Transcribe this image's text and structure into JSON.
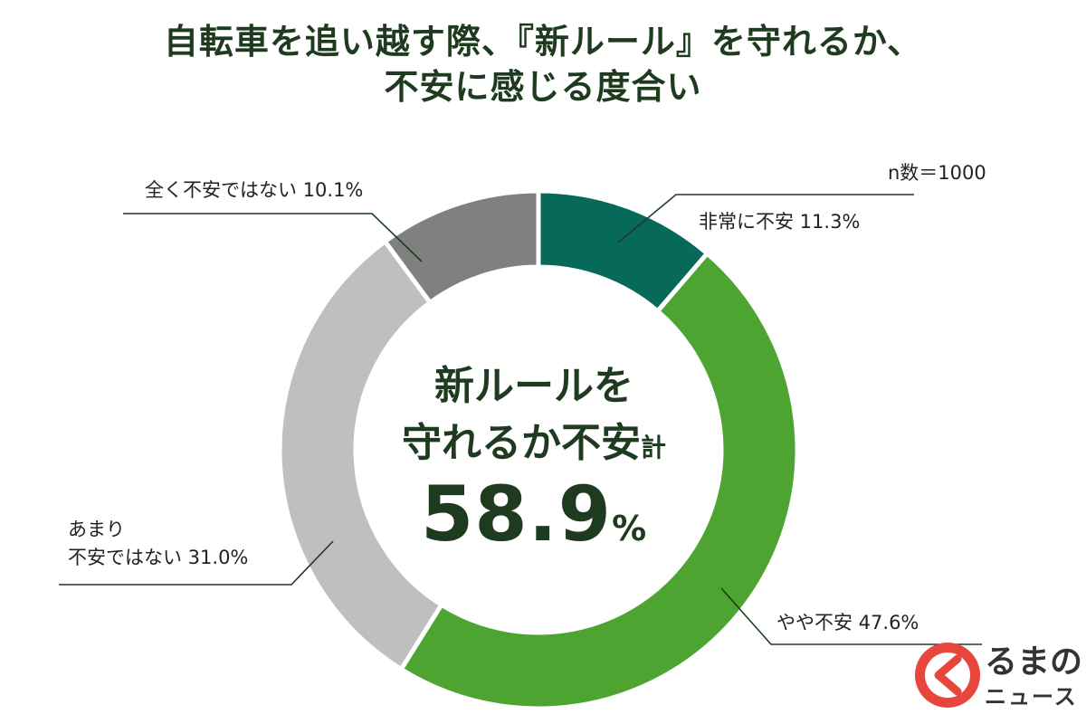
{
  "title_lines": [
    "自転車を追い越す際、『新ルール』を守れるか、",
    "不安に感じる度合い"
  ],
  "sample_size": "n数＝1000",
  "center": {
    "line1": "新ルールを",
    "line2": "守れるか不安",
    "line2_suffix": "計",
    "value": "58.9",
    "unit": "%"
  },
  "chart_data": {
    "type": "pie",
    "variant": "donut",
    "unit": "%",
    "slices": [
      {
        "label": "非常に不安",
        "value": 11.3,
        "color": "#07695a"
      },
      {
        "label": "やや不安",
        "value": 47.6,
        "color": "#4ea431"
      },
      {
        "label": "あまり不安ではない",
        "value": 31.0,
        "color": "#bfbfbf"
      },
      {
        "label": "全く不安ではない",
        "value": 10.1,
        "color": "#808080"
      }
    ]
  },
  "labels": {
    "s0": "非常に不安 11.3%",
    "s1": "やや不安 47.6%",
    "s2_line1": "あまり",
    "s2_line2": "不安ではない 31.0%",
    "s3": "全く不安ではない 10.1%"
  },
  "logo": {
    "name": "るまの",
    "sub": "ニュース",
    "icon": "kuruma-news-logo-icon",
    "color": "#e8453c"
  }
}
